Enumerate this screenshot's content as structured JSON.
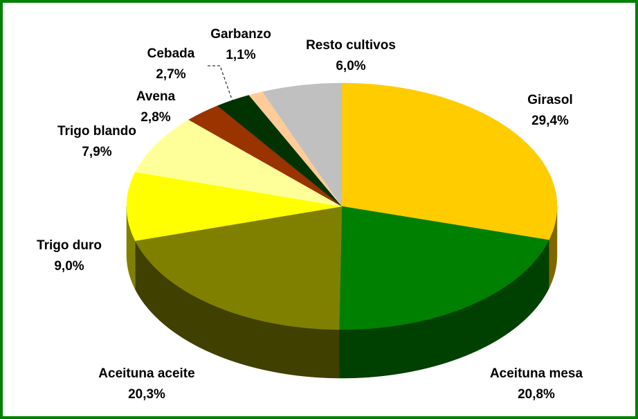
{
  "chart_data": {
    "type": "pie3d",
    "categories": [
      "Girasol",
      "Aceituna mesa",
      "Aceituna aceite",
      "Trigo duro",
      "Trigo blando",
      "Avena",
      "Cebada",
      "Garbanzo",
      "Resto cultivos"
    ],
    "values": [
      29.4,
      20.8,
      20.3,
      9.0,
      7.9,
      2.8,
      2.7,
      1.1,
      6.0
    ],
    "value_labels": [
      "29,4%",
      "20,8%",
      "20,3%",
      "9,0%",
      "7,9%",
      "2,8%",
      "2,7%",
      "1,1%",
      "6,0%"
    ],
    "colors": [
      "#FFCC00",
      "#008000",
      "#808000",
      "#FFFF00",
      "#FFFF99",
      "#993300",
      "#003300",
      "#FFCC99",
      "#C0C0C0"
    ]
  }
}
